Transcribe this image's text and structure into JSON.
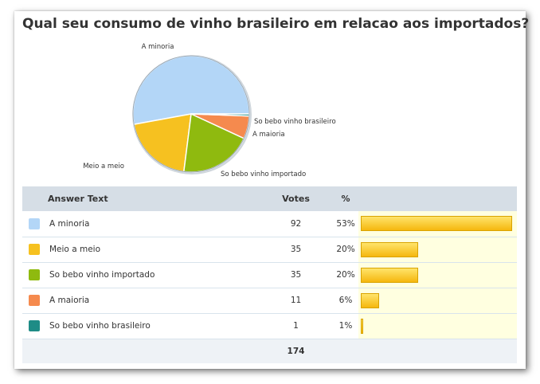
{
  "title": "Qual seu consumo de vinho brasileiro em relacao aos importados?",
  "table": {
    "headers": {
      "answer": "Answer Text",
      "votes": "Votes",
      "percent": "%"
    },
    "total": "174"
  },
  "chart_data": {
    "type": "pie",
    "title": "Qual seu consumo de vinho brasileiro em relacao aos importados?",
    "slices": [
      {
        "label": "A minoria",
        "votes": 92,
        "percent": "53%",
        "color": "#b3d6f7"
      },
      {
        "label": "Meio a meio",
        "votes": 35,
        "percent": "20%",
        "color": "#f6c120"
      },
      {
        "label": "So bebo vinho importado",
        "votes": 35,
        "percent": "20%",
        "color": "#8fba0f"
      },
      {
        "label": "A maioria",
        "votes": 11,
        "percent": "6%",
        "color": "#f58a4e"
      },
      {
        "label": "So bebo vinho brasileiro",
        "votes": 1,
        "percent": "1%",
        "color": "#1e8c86"
      }
    ],
    "total": 174
  }
}
